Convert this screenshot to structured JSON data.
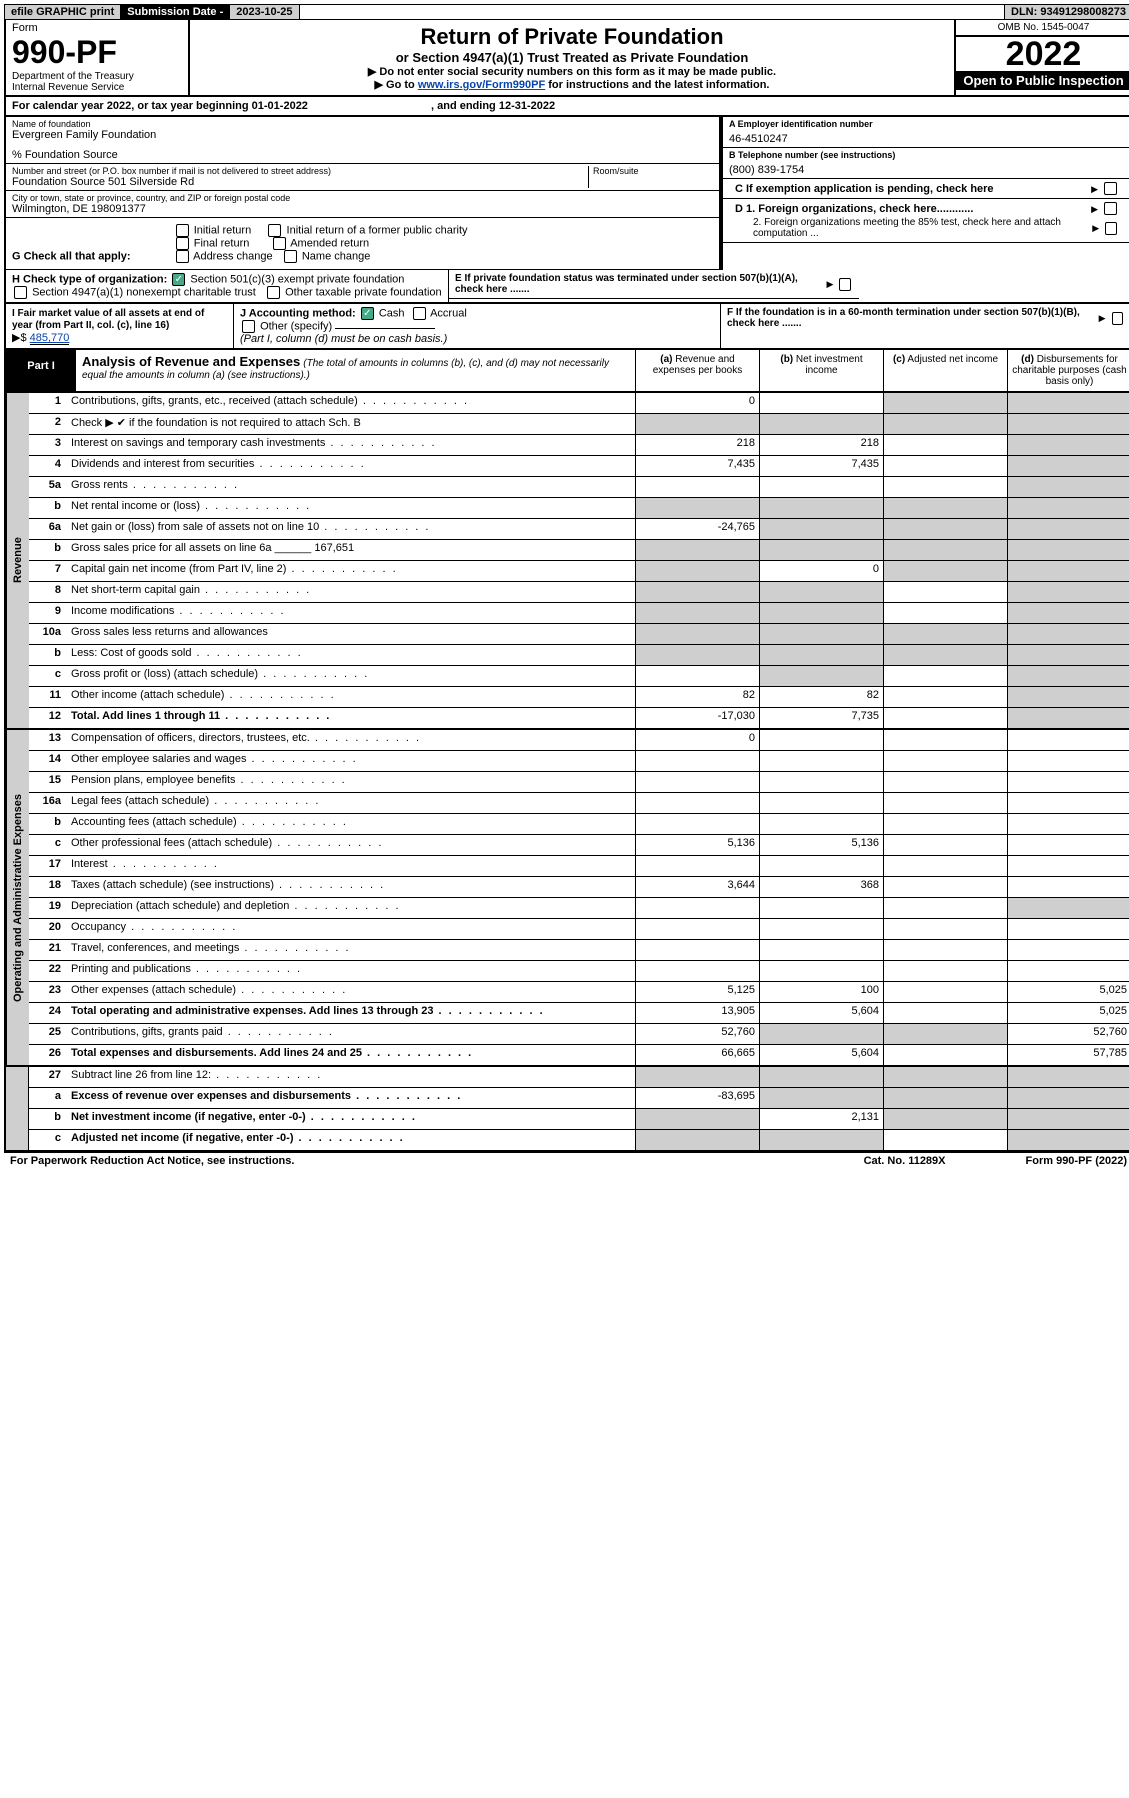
{
  "topbar": {
    "efile": "efile GRAPHIC print",
    "subdate_label": "Submission Date - ",
    "subdate_value": "2023-10-25",
    "dln_label": "DLN: ",
    "dln_value": "93491298008273"
  },
  "header": {
    "form_word": "Form",
    "form_no": "990-PF",
    "dept": "Department of the Treasury",
    "irs": "Internal Revenue Service",
    "title": "Return of Private Foundation",
    "subtitle": "or Section 4947(a)(1) Trust Treated as Private Foundation",
    "instr1": "▶ Do not enter social security numbers on this form as it may be made public.",
    "instr2_pre": "▶ Go to ",
    "instr2_link": "www.irs.gov/Form990PF",
    "instr2_post": " for instructions and the latest information.",
    "omb": "OMB No. 1545-0047",
    "year": "2022",
    "open": "Open to Public Inspection"
  },
  "calyear": {
    "pre": "For calendar year 2022, or tax year beginning ",
    "begin": "01-01-2022",
    "mid": " , and ending ",
    "end": "12-31-2022"
  },
  "info": {
    "name_label": "Name of foundation",
    "name": "Evergreen Family Foundation",
    "care": "% Foundation Source",
    "addr_label": "Number and street (or P.O. box number if mail is not delivered to street address)",
    "addr": "Foundation Source 501 Silverside Rd",
    "room_label": "Room/suite",
    "city_label": "City or town, state or province, country, and ZIP or foreign postal code",
    "city": "Wilmington, DE  198091377",
    "ein_label": "A Employer identification number",
    "ein": "46-4510247",
    "phone_label": "B Telephone number (see instructions)",
    "phone": "(800) 839-1754",
    "c_label": "C If exemption application is pending, check here",
    "d1": "D 1. Foreign organizations, check here............",
    "d2": "2. Foreign organizations meeting the 85% test, check here and attach computation ...",
    "e_label": "E  If private foundation status was terminated under section 507(b)(1)(A), check here .......",
    "f_label": "F  If the foundation is in a 60-month termination under section 507(b)(1)(B), check here .......",
    "g_label": "G Check all that apply:",
    "g_opts": [
      "Initial return",
      "Final return",
      "Address change",
      "Initial return of a former public charity",
      "Amended return",
      "Name change"
    ],
    "h_label": "H Check type of organization:",
    "h1": "Section 501(c)(3) exempt private foundation",
    "h2": "Section 4947(a)(1) nonexempt charitable trust",
    "h3": "Other taxable private foundation",
    "i_label": "I Fair market value of all assets at end of year (from Part II, col. (c), line 16)",
    "i_val": "485,770",
    "j_label": "J Accounting method:",
    "j_cash": "Cash",
    "j_accr": "Accrual",
    "j_other": "Other (specify)",
    "j_note": "(Part I, column (d) must be on cash basis.)"
  },
  "part1": {
    "label": "Part I",
    "title": "Analysis of Revenue and Expenses",
    "title_note": "(The total of amounts in columns (b), (c), and (d) may not necessarily equal the amounts in column (a) (see instructions).)",
    "col_a": "(a) Revenue and expenses per books",
    "col_b": "(b) Net investment income",
    "col_c": "(c) Adjusted net income",
    "col_d": "(d) Disbursements for charitable purposes (cash basis only)"
  },
  "sections": {
    "revenue": "Revenue",
    "expenses": "Operating and Administrative Expenses"
  },
  "rows": [
    {
      "n": "1",
      "d": "Contributions, gifts, grants, etc., received (attach schedule)",
      "a": "0",
      "b": "",
      "c": "g",
      "dcol": "g"
    },
    {
      "n": "2",
      "d": "Check ▶ ✔ if the foundation is not required to attach Sch. B",
      "a": "g",
      "b": "g",
      "c": "g",
      "dcol": "g",
      "nodots": true
    },
    {
      "n": "3",
      "d": "Interest on savings and temporary cash investments",
      "a": "218",
      "b": "218",
      "c": "",
      "dcol": "g"
    },
    {
      "n": "4",
      "d": "Dividends and interest from securities",
      "a": "7,435",
      "b": "7,435",
      "c": "",
      "dcol": "g"
    },
    {
      "n": "5a",
      "d": "Gross rents",
      "a": "",
      "b": "",
      "c": "",
      "dcol": "g"
    },
    {
      "n": "b",
      "d": "Net rental income or (loss)",
      "a": "g",
      "b": "g",
      "c": "g",
      "dcol": "g",
      "inset": true
    },
    {
      "n": "6a",
      "d": "Net gain or (loss) from sale of assets not on line 10",
      "a": "-24,765",
      "b": "g",
      "c": "g",
      "dcol": "g"
    },
    {
      "n": "b",
      "d": "Gross sales price for all assets on line 6a ______ 167,651",
      "a": "g",
      "b": "g",
      "c": "g",
      "dcol": "g",
      "nodots": true
    },
    {
      "n": "7",
      "d": "Capital gain net income (from Part IV, line 2)",
      "a": "g",
      "b": "0",
      "c": "g",
      "dcol": "g"
    },
    {
      "n": "8",
      "d": "Net short-term capital gain",
      "a": "g",
      "b": "g",
      "c": "",
      "dcol": "g"
    },
    {
      "n": "9",
      "d": "Income modifications",
      "a": "g",
      "b": "g",
      "c": "",
      "dcol": "g"
    },
    {
      "n": "10a",
      "d": "Gross sales less returns and allowances",
      "a": "g",
      "b": "g",
      "c": "g",
      "dcol": "g",
      "inset": true,
      "nodots": true
    },
    {
      "n": "b",
      "d": "Less: Cost of goods sold",
      "a": "g",
      "b": "g",
      "c": "g",
      "dcol": "g",
      "inset": true
    },
    {
      "n": "c",
      "d": "Gross profit or (loss) (attach schedule)",
      "a": "",
      "b": "g",
      "c": "",
      "dcol": "g"
    },
    {
      "n": "11",
      "d": "Other income (attach schedule)",
      "a": "82",
      "b": "82",
      "c": "",
      "dcol": "g"
    },
    {
      "n": "12",
      "d": "Total. Add lines 1 through 11",
      "a": "-17,030",
      "b": "7,735",
      "c": "",
      "dcol": "g",
      "bold": true
    }
  ],
  "exp_rows": [
    {
      "n": "13",
      "d": "Compensation of officers, directors, trustees, etc.",
      "a": "0",
      "b": "",
      "c": "",
      "dcol": ""
    },
    {
      "n": "14",
      "d": "Other employee salaries and wages",
      "a": "",
      "b": "",
      "c": "",
      "dcol": ""
    },
    {
      "n": "15",
      "d": "Pension plans, employee benefits",
      "a": "",
      "b": "",
      "c": "",
      "dcol": ""
    },
    {
      "n": "16a",
      "d": "Legal fees (attach schedule)",
      "a": "",
      "b": "",
      "c": "",
      "dcol": ""
    },
    {
      "n": "b",
      "d": "Accounting fees (attach schedule)",
      "a": "",
      "b": "",
      "c": "",
      "dcol": ""
    },
    {
      "n": "c",
      "d": "Other professional fees (attach schedule)",
      "a": "5,136",
      "b": "5,136",
      "c": "",
      "dcol": ""
    },
    {
      "n": "17",
      "d": "Interest",
      "a": "",
      "b": "",
      "c": "",
      "dcol": ""
    },
    {
      "n": "18",
      "d": "Taxes (attach schedule) (see instructions)",
      "a": "3,644",
      "b": "368",
      "c": "",
      "dcol": ""
    },
    {
      "n": "19",
      "d": "Depreciation (attach schedule) and depletion",
      "a": "",
      "b": "",
      "c": "",
      "dcol": "g"
    },
    {
      "n": "20",
      "d": "Occupancy",
      "a": "",
      "b": "",
      "c": "",
      "dcol": ""
    },
    {
      "n": "21",
      "d": "Travel, conferences, and meetings",
      "a": "",
      "b": "",
      "c": "",
      "dcol": ""
    },
    {
      "n": "22",
      "d": "Printing and publications",
      "a": "",
      "b": "",
      "c": "",
      "dcol": ""
    },
    {
      "n": "23",
      "d": "Other expenses (attach schedule)",
      "a": "5,125",
      "b": "100",
      "c": "",
      "dcol": "5,025"
    },
    {
      "n": "24",
      "d": "Total operating and administrative expenses. Add lines 13 through 23",
      "a": "13,905",
      "b": "5,604",
      "c": "",
      "dcol": "5,025",
      "bold": true
    },
    {
      "n": "25",
      "d": "Contributions, gifts, grants paid",
      "a": "52,760",
      "b": "g",
      "c": "g",
      "dcol": "52,760"
    },
    {
      "n": "26",
      "d": "Total expenses and disbursements. Add lines 24 and 25",
      "a": "66,665",
      "b": "5,604",
      "c": "",
      "dcol": "57,785",
      "bold": true
    }
  ],
  "bottom_rows": [
    {
      "n": "27",
      "d": "Subtract line 26 from line 12:",
      "a": "g",
      "b": "g",
      "c": "g",
      "dcol": "g"
    },
    {
      "n": "a",
      "d": "Excess of revenue over expenses and disbursements",
      "a": "-83,695",
      "b": "g",
      "c": "g",
      "dcol": "g",
      "bold": true
    },
    {
      "n": "b",
      "d": "Net investment income (if negative, enter -0-)",
      "a": "g",
      "b": "2,131",
      "c": "g",
      "dcol": "g",
      "bold": true
    },
    {
      "n": "c",
      "d": "Adjusted net income (if negative, enter -0-)",
      "a": "g",
      "b": "g",
      "c": "",
      "dcol": "g",
      "bold": true
    }
  ],
  "footer": {
    "left": "For Paperwork Reduction Act Notice, see instructions.",
    "mid": "Cat. No. 11289X",
    "right": "Form 990-PF (2022)"
  }
}
